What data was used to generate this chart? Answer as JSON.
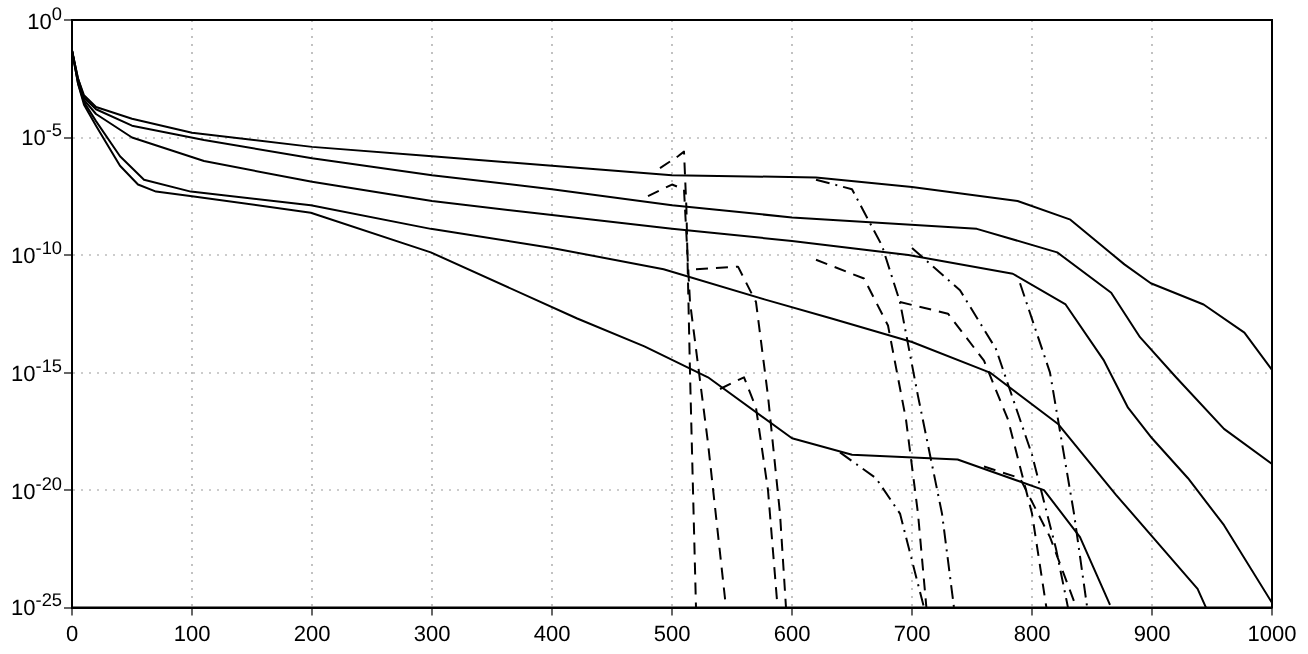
{
  "chart_data": {
    "type": "line",
    "log": "y",
    "grid": true,
    "legend": false,
    "marker": "none",
    "xlim": [
      0,
      1000
    ],
    "xticks": [
      0,
      100,
      200,
      300,
      400,
      500,
      600,
      700,
      800,
      900,
      1000
    ],
    "ylim": [
      1e-25,
      1
    ],
    "yticks": [
      {
        "value": 1,
        "label": "10$^{0}$"
      },
      {
        "value": 1e-05,
        "label": "10$^{-5}$"
      },
      {
        "value": 1e-10,
        "label": "10$^{-10}$"
      },
      {
        "value": 1e-15,
        "label": "10$^{-15}$"
      },
      {
        "value": 1e-20,
        "label": "10$^{-20}$"
      },
      {
        "value": 1e-25,
        "label": "10$^{-25}$"
      }
    ],
    "series": [
      {
        "color": "#000000",
        "line_style": "solid",
        "x": [
          0,
          5,
          10,
          20,
          50,
          100,
          200,
          300,
          400,
          500,
          620,
          700,
          788,
          832,
          877,
          899,
          943,
          977,
          1000
        ],
        "values": [
          0.05,
          0.0032,
          0.00063,
          0.0002,
          6.3e-05,
          1.6e-05,
          4e-06,
          1.6e-06,
          6.3e-07,
          2.5e-07,
          2e-07,
          7.9e-08,
          2e-08,
          3.2e-09,
          4e-11,
          6.3e-12,
          7.9e-13,
          5e-14,
          1.3e-15
        ]
      },
      {
        "color": "#000000",
        "line_style": "solid",
        "x": [
          0,
          5,
          10,
          20,
          50,
          110,
          200,
          300,
          400,
          500,
          600,
          754,
          821,
          866,
          890,
          920,
          960,
          1000
        ],
        "values": [
          0.05,
          0.0032,
          0.0005,
          0.00016,
          3.2e-05,
          7.9e-06,
          1.3e-06,
          2.5e-07,
          6.3e-08,
          1.3e-08,
          4e-09,
          1.3e-09,
          1.3e-10,
          2.5e-12,
          3.2e-14,
          6.3e-16,
          4e-18,
          1.3e-19
        ]
      },
      {
        "color": "#000000",
        "line_style": "solid",
        "x": [
          0,
          5,
          10,
          20,
          50,
          110,
          200,
          300,
          400,
          500,
          600,
          697,
          784,
          828,
          860,
          880,
          900,
          930,
          960,
          1000
        ],
        "values": [
          0.05,
          0.0025,
          0.0004,
          0.0001,
          1e-05,
          1e-06,
          1.3e-07,
          2e-08,
          5e-09,
          1.3e-09,
          4e-10,
          1e-10,
          1.6e-11,
          7.9e-13,
          3.2e-15,
          3.2e-17,
          1.6e-18,
          3.2e-20,
          3.2e-22,
          1.6e-25
        ]
      },
      {
        "color": "#000000",
        "line_style": "solid",
        "x": [
          0,
          5,
          10,
          20,
          40,
          60,
          99,
          199,
          299,
          400,
          493,
          577,
          633,
          700,
          765,
          822,
          870,
          938,
          945
        ],
        "values": [
          0.05,
          0.002,
          0.00032,
          5e-05,
          1.6e-06,
          1.6e-07,
          5e-08,
          1.3e-08,
          1.3e-09,
          2e-10,
          2.5e-11,
          1.3e-12,
          2e-13,
          2e-14,
          1e-15,
          6.3e-18,
          6.3e-21,
          6.3e-25,
          1e-25
        ]
      },
      {
        "color": "#000000",
        "line_style": "solid",
        "x": [
          0,
          5,
          10,
          20,
          40,
          55,
          70,
          100,
          199,
          299,
          421,
          477,
          530,
          600,
          650,
          738,
          810,
          840,
          865
        ],
        "values": [
          0.05,
          0.002,
          0.00025,
          3.2e-05,
          6.3e-07,
          1e-07,
          5e-08,
          3.2e-08,
          6.3e-09,
          1.3e-10,
          2e-13,
          1.3e-14,
          6.3e-16,
          1.6e-18,
          3.2e-19,
          2e-19,
          1e-20,
          1e-22,
          1.3e-25
        ]
      },
      {
        "color": "#000000",
        "line_style": "dashed",
        "x": [
          490,
          505,
          510,
          512,
          515,
          520
        ],
        "values": [
          5e-07,
          1.6e-06,
          2.5e-06,
          1e-08,
          1e-15,
          1e-25
        ]
      },
      {
        "color": "#000000",
        "line_style": "dashed",
        "x": [
          480,
          500,
          510,
          515,
          530,
          545
        ],
        "values": [
          3.2e-08,
          1e-07,
          6.3e-08,
          1e-12,
          1e-18,
          1e-25
        ]
      },
      {
        "color": "#000000",
        "line_style": "dashed",
        "x": [
          520,
          555,
          570,
          580,
          590,
          595
        ],
        "values": [
          2.5e-11,
          3.2e-11,
          1e-12,
          1e-16,
          1e-21,
          1e-25
        ]
      },
      {
        "color": "#000000",
        "line_style": "dashed",
        "x": [
          540,
          560,
          570,
          580,
          588
        ],
        "values": [
          2e-16,
          6.3e-16,
          3.2e-17,
          1e-20,
          1e-25
        ]
      },
      {
        "color": "#000000",
        "line_style": "dashed",
        "x": [
          620,
          660,
          680,
          695,
          705,
          712
        ],
        "values": [
          6.3e-11,
          1e-11,
          1e-13,
          1e-17,
          1e-21,
          1e-25
        ]
      },
      {
        "color": "#000000",
        "line_style": "dashed",
        "x": [
          690,
          730,
          760,
          780,
          800,
          812
        ],
        "values": [
          1e-12,
          3.2e-13,
          3.2e-15,
          1e-17,
          1e-21,
          1e-25
        ]
      },
      {
        "color": "#000000",
        "line_style": "dashed",
        "x": [
          760,
          790,
          815,
          837
        ],
        "values": [
          1e-19,
          3.2e-20,
          1e-22,
          1e-25
        ]
      },
      {
        "color": "#000000",
        "line_style": "dashdot",
        "x": [
          620,
          650,
          675,
          690,
          705,
          725,
          735
        ],
        "values": [
          1.6e-07,
          6.3e-08,
          2.5e-10,
          1e-12,
          1e-16,
          1e-21,
          1e-25
        ]
      },
      {
        "color": "#000000",
        "line_style": "dashdot",
        "x": [
          700,
          740,
          770,
          800,
          820,
          830
        ],
        "values": [
          2e-10,
          3.2e-12,
          1e-14,
          3.2e-19,
          3.2e-23,
          1e-25
        ]
      },
      {
        "color": "#000000",
        "line_style": "dashdot",
        "x": [
          640,
          670,
          690,
          710
        ],
        "values": [
          4e-19,
          3.2e-20,
          1e-21,
          1e-25
        ]
      },
      {
        "color": "#000000",
        "line_style": "dashdot",
        "x": [
          790,
          815,
          835,
          846
        ],
        "values": [
          6.3e-12,
          1e-15,
          1e-21,
          1e-25
        ]
      }
    ]
  }
}
